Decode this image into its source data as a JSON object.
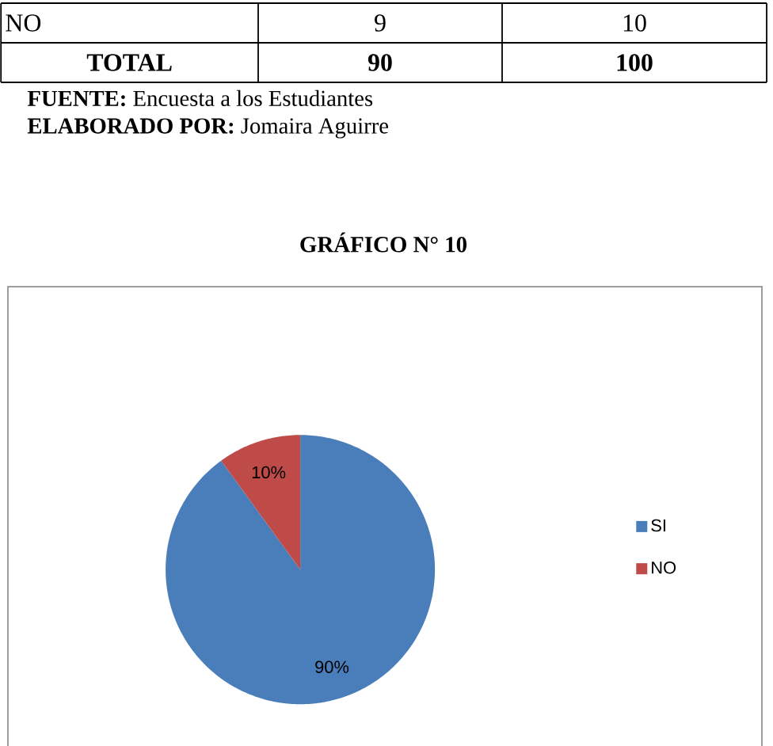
{
  "chart_data": {
    "type": "pie",
    "title": "GRÁFICO N° 10",
    "categories": [
      "SI",
      "NO"
    ],
    "values": [
      90,
      10
    ],
    "colors": [
      "#4a7ebb",
      "#be4b48"
    ],
    "value_labels": [
      "90%",
      "10%"
    ],
    "legend": "right",
    "annotations": [
      "NO",
      "9",
      "10",
      "TOTAL",
      "90",
      "100",
      "**FUENTE:** Encuesta a los Estudiantes",
      "**ELABORADO POR:** Jomaira Aguirre"
    ]
  }
}
